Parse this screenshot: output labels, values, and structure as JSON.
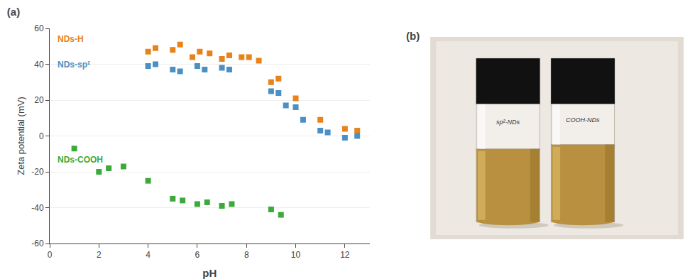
{
  "chart_data": {
    "type": "scatter",
    "title": "(a)",
    "x_label": "pH",
    "y_label": "Zeta potential (mV)",
    "xlim": [
      0,
      13
    ],
    "ylim": [
      -60,
      60
    ],
    "xticks": [
      0,
      2,
      4,
      6,
      8,
      10,
      12
    ],
    "yticks": [
      -60,
      -40,
      -20,
      0,
      20,
      40,
      60
    ],
    "grid": "y",
    "marker": "square",
    "series": [
      {
        "name": "NDs-H",
        "color": "#E8821A",
        "x": [
          4.0,
          4.3,
          5.0,
          5.3,
          5.8,
          6.1,
          6.5,
          7.0,
          7.3,
          7.8,
          8.1,
          8.5,
          9.0,
          9.3,
          10.0,
          11.0,
          12.0,
          12.5
        ],
        "values": [
          47,
          49,
          48,
          51,
          44,
          47,
          46,
          43,
          45,
          44,
          44,
          42,
          30,
          32,
          21,
          9,
          4,
          3
        ]
      },
      {
        "name": "NDs-sp²",
        "color": "#4A90C4",
        "x": [
          4.0,
          4.3,
          5.0,
          5.3,
          6.0,
          6.3,
          7.0,
          7.3,
          9.0,
          9.3,
          9.6,
          10.0,
          10.3,
          11.0,
          11.3,
          12.0,
          12.5
        ],
        "values": [
          39,
          40,
          37,
          36,
          39,
          37,
          38,
          37,
          25,
          24,
          17,
          16,
          9,
          3,
          2,
          -1,
          0
        ]
      },
      {
        "name": "NDs-COOH",
        "color": "#3BAA3B",
        "x": [
          1.0,
          2.0,
          2.4,
          3.0,
          4.0,
          5.0,
          5.4,
          6.0,
          6.4,
          7.0,
          7.4,
          9.0,
          9.4
        ],
        "values": [
          -7,
          -20,
          -18,
          -17,
          -25,
          -35,
          -36,
          -38,
          -37,
          -39,
          -38,
          -41,
          -44
        ]
      }
    ],
    "annotations": [
      "(b)",
      "sp²-NDs",
      "COOH-NDs"
    ]
  }
}
